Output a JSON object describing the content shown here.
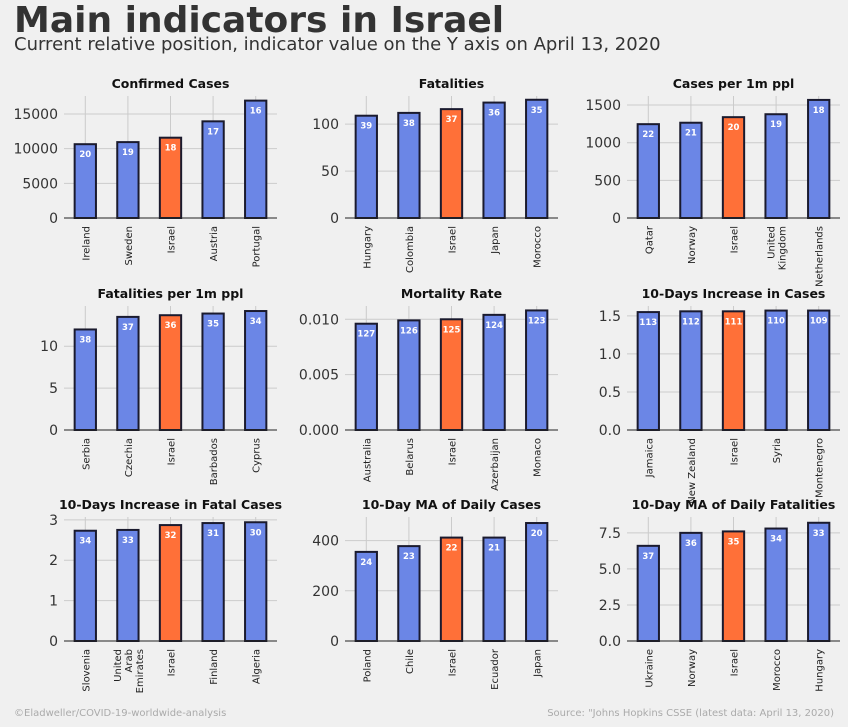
{
  "header": {
    "title": "Main indicators in Israel",
    "subtitle": "Current relative position, indicator value on the Y axis on April 13, 2020"
  },
  "footer": {
    "credit": "©Eladweller/COVID-19-worldwide-analysis",
    "source": "Source: \"Johns Hopkins CSSE (latest data: April 13, 2020)"
  },
  "colors": {
    "bar": "#6b86e6",
    "highlight": "#ff7038",
    "edge": "#1a1a2e",
    "grid": "#cbcbcb",
    "background": "#f0f0f0"
  },
  "chart_data": [
    {
      "type": "bar",
      "title": "Confirmed Cases",
      "categories": [
        "Ireland",
        "Sweden",
        "Israel",
        "Austria",
        "Portugal"
      ],
      "values": [
        10647,
        10948,
        11586,
        13945,
        16934
      ],
      "ranks": [
        "20",
        "19",
        "18",
        "17",
        "16"
      ],
      "highlight": "Israel",
      "yticks": [
        "0",
        "5000",
        "10000",
        "15000"
      ],
      "ytick_values": [
        0,
        5000,
        10000,
        15000
      ],
      "ylim": [
        0,
        17600
      ]
    },
    {
      "type": "bar",
      "title": "Fatalities",
      "categories": [
        "Hungary",
        "Colombia",
        "Israel",
        "Japan",
        "Morocco"
      ],
      "values": [
        109,
        112,
        116,
        123,
        126
      ],
      "ranks": [
        "39",
        "38",
        "37",
        "36",
        "35"
      ],
      "highlight": "Israel",
      "yticks": [
        "0",
        "50",
        "100"
      ],
      "ytick_values": [
        0,
        50,
        100
      ],
      "ylim": [
        0,
        130
      ]
    },
    {
      "type": "bar",
      "title": "Cases per 1m ppl",
      "categories": [
        "Qatar",
        "Norway",
        "Israel",
        "United Kingdom",
        "Netherlands"
      ],
      "values": [
        1246,
        1265,
        1339,
        1378,
        1568
      ],
      "ranks": [
        "22",
        "21",
        "20",
        "19",
        "18"
      ],
      "highlight": "Israel",
      "yticks": [
        "0",
        "500",
        "1000",
        "1500"
      ],
      "ytick_values": [
        0,
        500,
        1000,
        1500
      ],
      "ylim": [
        0,
        1620
      ]
    },
    {
      "type": "bar",
      "title": "Fatalities per 1m ppl",
      "categories": [
        "Serbia",
        "Czechia",
        "Israel",
        "Barbados",
        "Cyprus"
      ],
      "values": [
        12.0,
        13.5,
        13.7,
        13.9,
        14.2
      ],
      "ranks": [
        "38",
        "37",
        "36",
        "35",
        "34"
      ],
      "highlight": "Israel",
      "yticks": [
        "0",
        "5",
        "10"
      ],
      "ytick_values": [
        0,
        5,
        10
      ],
      "ylim": [
        0,
        14.8
      ]
    },
    {
      "type": "bar",
      "title": "Mortality Rate",
      "categories": [
        "Australia",
        "Belarus",
        "Israel",
        "Azerbaijan",
        "Monaco"
      ],
      "values": [
        0.0096,
        0.0099,
        0.01,
        0.0104,
        0.0108
      ],
      "ranks": [
        "127",
        "126",
        "125",
        "124",
        "123"
      ],
      "highlight": "Israel",
      "yticks": [
        "0.000",
        "0.005",
        "0.010"
      ],
      "ytick_values": [
        0,
        0.005,
        0.01
      ],
      "ylim": [
        0,
        0.0112
      ]
    },
    {
      "type": "bar",
      "title": "10-Days Increase in Cases",
      "categories": [
        "Jamaica",
        "New Zealand",
        "Israel",
        "Syria",
        "Montenegro"
      ],
      "values": [
        1.55,
        1.56,
        1.56,
        1.57,
        1.57
      ],
      "ranks": [
        "113",
        "112",
        "111",
        "110",
        "109"
      ],
      "highlight": "Israel",
      "yticks": [
        "0.0",
        "0.5",
        "1.0",
        "1.5"
      ],
      "ytick_values": [
        0,
        0.5,
        1.0,
        1.5
      ],
      "ylim": [
        0,
        1.63
      ]
    },
    {
      "type": "bar",
      "title": "10-Days Increase in Fatal Cases",
      "categories": [
        "Slovenia",
        "United Arab Emirates",
        "Israel",
        "Finland",
        "Algeria"
      ],
      "values": [
        2.73,
        2.75,
        2.87,
        2.92,
        2.94
      ],
      "ranks": [
        "34",
        "33",
        "32",
        "31",
        "30"
      ],
      "highlight": "Israel",
      "yticks": [
        "0",
        "1",
        "2",
        "3"
      ],
      "ytick_values": [
        0,
        1,
        2,
        3
      ],
      "ylim": [
        0,
        3.07
      ]
    },
    {
      "type": "bar",
      "title": "10-Day MA of Daily Cases",
      "categories": [
        "Poland",
        "Chile",
        "Israel",
        "Ecuador",
        "Japan"
      ],
      "values": [
        355,
        378,
        412,
        412,
        470
      ],
      "ranks": [
        "24",
        "23",
        "22",
        "21",
        "20"
      ],
      "highlight": "Israel",
      "yticks": [
        "0",
        "200",
        "400"
      ],
      "ytick_values": [
        0,
        200,
        400
      ],
      "ylim": [
        0,
        494
      ]
    },
    {
      "type": "bar",
      "title": "10-Day MA of Daily Fatalities",
      "categories": [
        "Ukraine",
        "Norway",
        "Israel",
        "Morocco",
        "Hungary"
      ],
      "values": [
        6.6,
        7.5,
        7.6,
        7.8,
        8.2
      ],
      "ranks": [
        "37",
        "36",
        "35",
        "34",
        "33"
      ],
      "highlight": "Israel",
      "yticks": [
        "0.0",
        "2.5",
        "5.0",
        "7.5"
      ],
      "ytick_values": [
        0,
        2.5,
        5.0,
        7.5
      ],
      "ylim": [
        0,
        8.6
      ]
    }
  ]
}
